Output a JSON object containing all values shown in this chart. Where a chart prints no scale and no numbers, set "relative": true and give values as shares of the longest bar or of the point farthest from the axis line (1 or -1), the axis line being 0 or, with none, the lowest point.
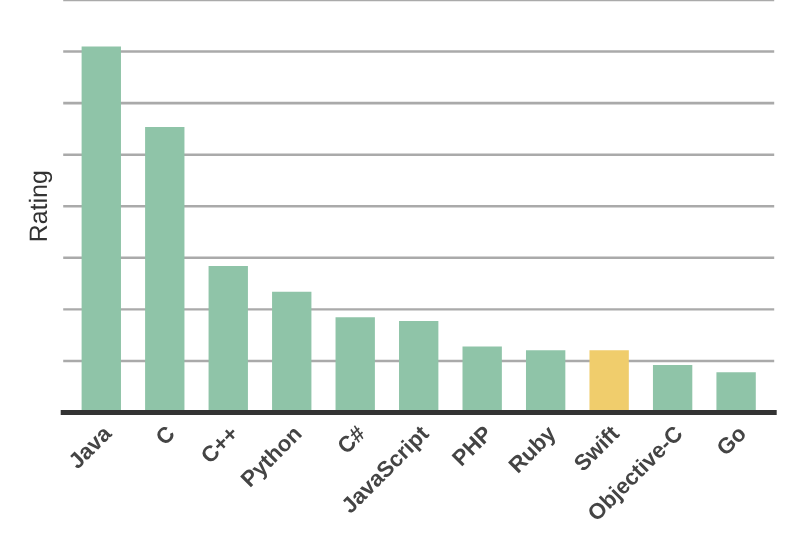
{
  "chart_data": {
    "type": "bar",
    "ylabel": "Rating",
    "relative": true,
    "grid": "y",
    "categories": [
      "Java",
      "C",
      "C++",
      "Python",
      "C#",
      "JavaScript",
      "PHP",
      "Ruby",
      "Swift",
      "Objective-C",
      "Go"
    ],
    "values": [
      1,
      0.78,
      0.4,
      0.33,
      0.26,
      0.25,
      0.18,
      0.17,
      0.17,
      0.13,
      0.11
    ],
    "colors": [
      "#8fc4a8",
      "#8fc4a8",
      "#8fc4a8",
      "#8fc4a8",
      "#8fc4a8",
      "#8fc4a8",
      "#8fc4a8",
      "#8fc4a8",
      "#f0cd6c",
      "#8fc4a8",
      "#8fc4a8"
    ]
  }
}
